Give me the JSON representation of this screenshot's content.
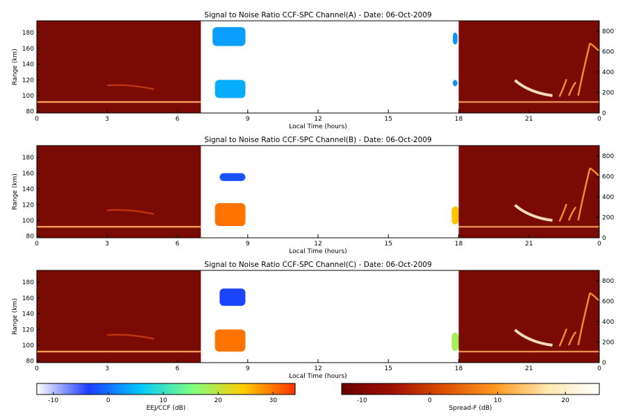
{
  "chart_data": [
    {
      "type": "heatmap",
      "title": "Signal to Noise Ratio CCF-SPC Channel(A) - Date: 06-Oct-2009",
      "xlabel": "Local Time (hours)",
      "ylabel": "Range (km)",
      "xticks": [
        "0",
        "3",
        "6",
        "9",
        "12",
        "15",
        "18",
        "21",
        "0"
      ],
      "yticks_left": [
        "80",
        "100",
        "120",
        "140",
        "160",
        "180"
      ],
      "yticks_right": [
        "0",
        "200",
        "400",
        "600",
        "800"
      ],
      "xlim": [
        0,
        24
      ],
      "ylim_left": [
        78,
        195
      ],
      "ylim_right": [
        0,
        900
      ],
      "day_gap_hours": [
        7,
        18
      ],
      "eej_echoes": [
        {
          "t0": 7.5,
          "t1": 8.9,
          "r0": 163,
          "r1": 187,
          "snr_db": 3
        },
        {
          "t0": 7.6,
          "t1": 8.9,
          "r0": 97,
          "r1": 120,
          "snr_db": 4
        },
        {
          "t0": 17.75,
          "t1": 17.95,
          "r0": 165,
          "r1": 180,
          "snr_db": 2
        },
        {
          "t0": 17.75,
          "t1": 17.95,
          "r0": 112,
          "r1": 120,
          "snr_db": 2
        }
      ]
    },
    {
      "type": "heatmap",
      "title": "Signal to Noise Ratio CCF-SPC Channel(B) - Date: 06-Oct-2009",
      "xlabel": "Local Time (hours)",
      "ylabel": "Range (km)",
      "xticks": [
        "0",
        "3",
        "6",
        "9",
        "12",
        "15",
        "18",
        "21",
        "0"
      ],
      "yticks_left": [
        "80",
        "100",
        "120",
        "140",
        "160",
        "180"
      ],
      "yticks_right": [
        "0",
        "200",
        "400",
        "600",
        "800"
      ],
      "xlim": [
        0,
        24
      ],
      "ylim_left": [
        78,
        195
      ],
      "ylim_right": [
        0,
        900
      ],
      "day_gap_hours": [
        7,
        18
      ],
      "eej_echoes": [
        {
          "t0": 7.8,
          "t1": 8.9,
          "r0": 150,
          "r1": 160,
          "snr_db": -2
        },
        {
          "t0": 7.6,
          "t1": 8.9,
          "r0": 93,
          "r1": 122,
          "snr_db": 30
        },
        {
          "t0": 17.7,
          "t1": 18.0,
          "r0": 95,
          "r1": 118,
          "snr_db": 25
        }
      ]
    },
    {
      "type": "heatmap",
      "title": "Signal to Noise Ratio CCF-SPC Channel(C) - Date: 06-Oct-2009",
      "xlabel": "Local Time (hours)",
      "ylabel": "Range (km)",
      "xticks": [
        "0",
        "3",
        "6",
        "9",
        "12",
        "15",
        "18",
        "21",
        "0"
      ],
      "yticks_left": [
        "80",
        "100",
        "120",
        "140",
        "160",
        "180"
      ],
      "yticks_right": [
        "0",
        "200",
        "400",
        "600",
        "800"
      ],
      "xlim": [
        0,
        24
      ],
      "ylim_left": [
        78,
        195
      ],
      "ylim_right": [
        0,
        900
      ],
      "day_gap_hours": [
        7,
        18
      ],
      "eej_echoes": [
        {
          "t0": 7.8,
          "t1": 8.9,
          "r0": 150,
          "r1": 172,
          "snr_db": -3
        },
        {
          "t0": 7.6,
          "t1": 8.9,
          "r0": 92,
          "r1": 120,
          "snr_db": 30
        },
        {
          "t0": 17.7,
          "t1": 18.0,
          "r0": 93,
          "r1": 116,
          "snr_db": 18
        }
      ]
    }
  ],
  "colorbars": [
    {
      "label": "EEJ/CCF (dB)",
      "ticks": [
        "-10",
        "0",
        "10",
        "20",
        "30"
      ],
      "range": [
        -13,
        34
      ],
      "colors": [
        "#ffffff",
        "#1e3cff",
        "#00c8ff",
        "#7fff7f",
        "#ffcc00",
        "#ff3300"
      ]
    },
    {
      "label": "Spread-F (dB)",
      "ticks": [
        "-10",
        "0",
        "10",
        "20"
      ],
      "range": [
        -13,
        25
      ],
      "colors": [
        "#6a0000",
        "#a01000",
        "#e05000",
        "#ff9a20",
        "#ffe8b0",
        "#ffffff"
      ]
    }
  ],
  "colors": {
    "night_background": "#7a0a04",
    "eej_band": "#ffb060",
    "spreadf_bright": "#fff2d0"
  }
}
